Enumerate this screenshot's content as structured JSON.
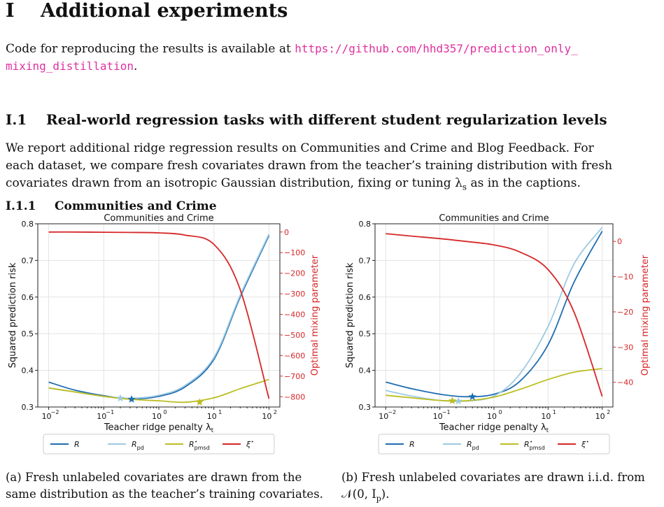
{
  "section": {
    "number": "I",
    "title": "Additional experiments"
  },
  "intro": {
    "text": "Code for reproducing the results is available at ",
    "link_part1": "https://github.com/hhd357/prediction_only_",
    "link_part2": "mixing_distillation",
    "end": "."
  },
  "subsection": {
    "number": "I.1",
    "title": "Real-world regression tasks with different student regularization levels"
  },
  "body_lines": [
    "We report additional ridge regression results on Communities and Crime and Blog Feedback. For",
    "each dataset, we compare fresh covariates drawn from the teacher’s training distribution with fresh",
    "covariates drawn from an isotropic Gaussian distribution, fixing or tuning λ",
    "as in the captions."
  ],
  "body_sub": "s",
  "subsubsection": {
    "number": "I.1.1",
    "title": "Communities and Crime"
  },
  "colors": {
    "R": "#1f6db0",
    "R_pd": "#9ecae1",
    "R_pmsd": "#bcbd22",
    "xi": "#d62728"
  },
  "legend": {
    "R": "R",
    "R_pd": "R",
    "R_pd_sub": "pd",
    "R_pmsd": "R",
    "R_pmsd_sub": "pmsd",
    "R_pmsd_sup": "⋆",
    "xi": "ξ",
    "xi_sup": "⋆"
  },
  "charts": [
    {
      "title": "Communities and Crime",
      "xlabel": "Teacher ridge penalty λ",
      "xlabel_sub": "t",
      "ylabel_left": "Squared prediction risk",
      "ylabel_right": "Optimal mixing parameter",
      "x_ticks": [
        "10",
        "10",
        "10",
        "10",
        "10"
      ],
      "x_tick_exps": [
        "−2",
        "−1",
        "0",
        "1",
        "2"
      ],
      "yl_ticks": [
        "0.3",
        "0.4",
        "0.5",
        "0.6",
        "0.7",
        "0.8"
      ],
      "yr_ticks": [
        "0",
        "−100",
        "−200",
        "−300",
        "−400",
        "−500",
        "−600",
        "−700",
        "−800"
      ],
      "caption_lines": [
        "(a) Fresh unlabeled covariates are drawn from the",
        "same distribution as the teacher’s training covariates."
      ]
    },
    {
      "title": "Communities and Crime",
      "xlabel": "Teacher ridge penalty λ",
      "xlabel_sub": "t",
      "ylabel_left": "Squared prediction risk",
      "ylabel_right": "Optimal mixing parameter",
      "x_ticks": [
        "10",
        "10",
        "10",
        "10",
        "10"
      ],
      "x_tick_exps": [
        "−2",
        "−1",
        "0",
        "1",
        "2"
      ],
      "yl_ticks": [
        "0.3",
        "0.4",
        "0.5",
        "0.6",
        "0.7",
        "0.8"
      ],
      "yr_ticks": [
        "0",
        "−10",
        "−20",
        "−30",
        "−40"
      ],
      "caption_lines": [
        "(b) Fresh unlabeled covariates are drawn i.i.d. from",
        "𝒩(0, I"
      ],
      "caption_sub": "p",
      "caption_end": ")."
    }
  ],
  "chart_data": [
    {
      "type": "line",
      "title": "Communities and Crime",
      "xlabel": "Teacher ridge penalty λ_t",
      "ylabel": "Squared prediction risk",
      "ylabel_right": "Optimal mixing parameter",
      "xscale": "log",
      "xlim": [
        0.01,
        100
      ],
      "ylim": [
        0.3,
        0.8
      ],
      "ylim_right": [
        -850,
        40
      ],
      "grid": true,
      "legend": "bottom",
      "x": [
        0.01,
        0.03,
        0.1,
        0.3,
        1,
        3,
        10,
        30,
        100
      ],
      "series": [
        {
          "name": "R",
          "axis": "left",
          "values": [
            0.368,
            0.346,
            0.331,
            0.322,
            0.329,
            0.355,
            0.43,
            0.6,
            0.768
          ]
        },
        {
          "name": "R_pd",
          "axis": "left",
          "values": [
            0.352,
            0.341,
            0.329,
            0.324,
            0.332,
            0.359,
            0.435,
            0.605,
            0.772
          ]
        },
        {
          "name": "R_pmsd",
          "axis": "left",
          "values": [
            0.352,
            0.341,
            0.329,
            0.321,
            0.317,
            0.313,
            0.325,
            0.35,
            0.375
          ]
        },
        {
          "name": "ξ",
          "axis": "right",
          "values": [
            0,
            0,
            -1,
            -2,
            -4,
            -15,
            -60,
            -280,
            -810
          ]
        }
      ],
      "markers": [
        {
          "series": "R",
          "x": 0.32,
          "y": 0.321
        },
        {
          "series": "R_pd",
          "x": 0.2,
          "y": 0.324
        },
        {
          "series": "R_pmsd",
          "x": 5.5,
          "y": 0.313
        }
      ]
    },
    {
      "type": "line",
      "title": "Communities and Crime",
      "xlabel": "Teacher ridge penalty λ_t",
      "ylabel": "Squared prediction risk",
      "ylabel_right": "Optimal mixing parameter",
      "xscale": "log",
      "xlim": [
        0.01,
        100
      ],
      "ylim": [
        0.3,
        0.8
      ],
      "ylim_right": [
        -47,
        5
      ],
      "grid": true,
      "legend": "bottom",
      "x": [
        0.01,
        0.03,
        0.1,
        0.3,
        1,
        3,
        10,
        30,
        100
      ],
      "series": [
        {
          "name": "R",
          "axis": "left",
          "values": [
            0.368,
            0.35,
            0.335,
            0.328,
            0.335,
            0.37,
            0.47,
            0.64,
            0.78
          ]
        },
        {
          "name": "R_pd",
          "axis": "left",
          "values": [
            0.345,
            0.33,
            0.318,
            0.316,
            0.33,
            0.39,
            0.52,
            0.69,
            0.79
          ]
        },
        {
          "name": "R_pmsd",
          "axis": "left",
          "values": [
            0.332,
            0.325,
            0.318,
            0.317,
            0.327,
            0.348,
            0.375,
            0.395,
            0.405
          ]
        },
        {
          "name": "ξ",
          "axis": "right",
          "values": [
            2.2,
            1.5,
            0.8,
            0,
            -1,
            -3,
            -8,
            -20,
            -44
          ]
        }
      ],
      "markers": [
        {
          "series": "R",
          "x": 0.4,
          "y": 0.328
        },
        {
          "series": "R_pd",
          "x": 0.22,
          "y": 0.316
        },
        {
          "series": "R_pmsd",
          "x": 0.17,
          "y": 0.317
        }
      ]
    }
  ]
}
